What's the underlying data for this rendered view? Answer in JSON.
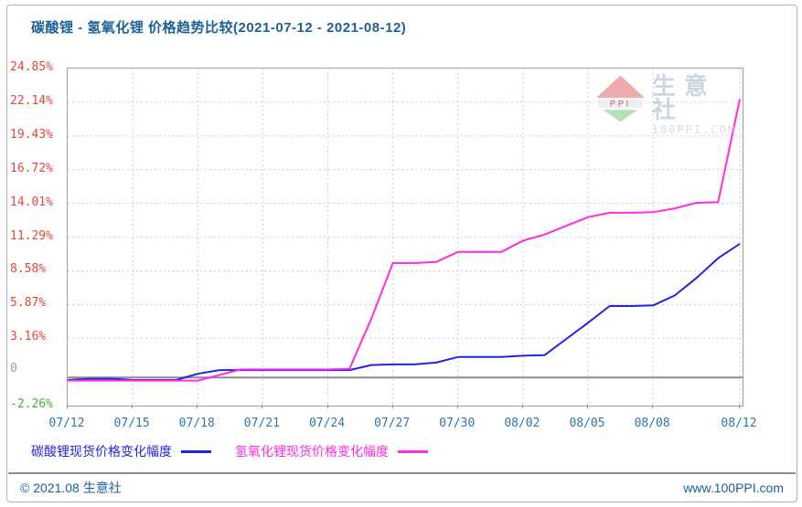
{
  "page_title": "碳酸锂 - 氢氧化锂 价格趋势比较(2021-07-12 - 2021-08-12)",
  "watermark": {
    "logo_abbr": "PPI",
    "brand": "生意社",
    "brand_site": "100PPI.COM"
  },
  "footer": {
    "copyright": "© 2021.08 生意社",
    "website": "www.100PPI.com"
  },
  "colors": {
    "title": "#1d6294",
    "axis_date": "#2d77ad",
    "tick_positive": "#e74438",
    "tick_zero": "#9a9a9a",
    "tick_negative": "#3fae3f",
    "grid": "#cccccc",
    "plot_border": "#a0a0a0",
    "zero_line": "#8c8c8c",
    "series_carbonate": "#2323e0",
    "series_hydroxide": "#ff2ce2"
  },
  "chart_data": {
    "type": "line",
    "title": "碳酸锂 - 氢氧化锂 价格趋势比较(2021-07-12 - 2021-08-12)",
    "xlabel": "",
    "ylabel": "",
    "grid": true,
    "legend_position": "bottom",
    "ylim": [
      -2.26,
      24.85
    ],
    "y_tick_labels": [
      "24.85%",
      "22.14%",
      "19.43%",
      "16.72%",
      "14.01%",
      "11.29%",
      "8.58%",
      "5.87%",
      "3.16%",
      "0",
      "-2.26%"
    ],
    "y_tick_values": [
      24.85,
      22.14,
      19.43,
      16.72,
      14.01,
      11.29,
      8.58,
      5.87,
      3.16,
      0,
      -2.26
    ],
    "x": [
      "07/12",
      "07/13",
      "07/14",
      "07/15",
      "07/16",
      "07/17",
      "07/18",
      "07/19",
      "07/20",
      "07/21",
      "07/22",
      "07/23",
      "07/24",
      "07/25",
      "07/26",
      "07/27",
      "07/28",
      "07/29",
      "07/30",
      "07/31",
      "08/01",
      "08/02",
      "08/03",
      "08/04",
      "08/05",
      "08/06",
      "08/07",
      "08/08",
      "08/09",
      "08/10",
      "08/11",
      "08/12"
    ],
    "x_tick_labels": [
      "07/12",
      "07/15",
      "07/18",
      "07/21",
      "07/24",
      "07/27",
      "07/30",
      "08/02",
      "08/05",
      "08/08",
      "08/12"
    ],
    "series": [
      {
        "key": "carbonate",
        "name": "碳酸锂现货价格变化幅度",
        "color": "#2323e0",
        "unit": "%",
        "values": [
          -0.2,
          -0.1,
          -0.1,
          -0.2,
          -0.2,
          -0.2,
          0.3,
          0.6,
          0.6,
          0.6,
          0.6,
          0.6,
          0.6,
          0.6,
          1.0,
          1.05,
          1.05,
          1.2,
          1.65,
          1.65,
          1.65,
          1.75,
          1.8,
          3.1,
          4.4,
          5.75,
          5.75,
          5.8,
          6.6,
          8.0,
          9.6,
          10.75
        ]
      },
      {
        "key": "hydroxide",
        "name": "氢氧化锂现货价格变化幅度",
        "color": "#ff2ce2",
        "unit": "%",
        "values": [
          -0.25,
          -0.25,
          -0.25,
          -0.25,
          -0.25,
          -0.25,
          -0.25,
          0.2,
          0.65,
          0.65,
          0.65,
          0.65,
          0.65,
          0.7,
          4.7,
          9.2,
          9.2,
          9.3,
          10.1,
          10.1,
          10.1,
          11.0,
          11.5,
          12.2,
          12.9,
          13.25,
          13.25,
          13.3,
          13.6,
          14.05,
          14.1,
          22.4
        ]
      }
    ]
  }
}
